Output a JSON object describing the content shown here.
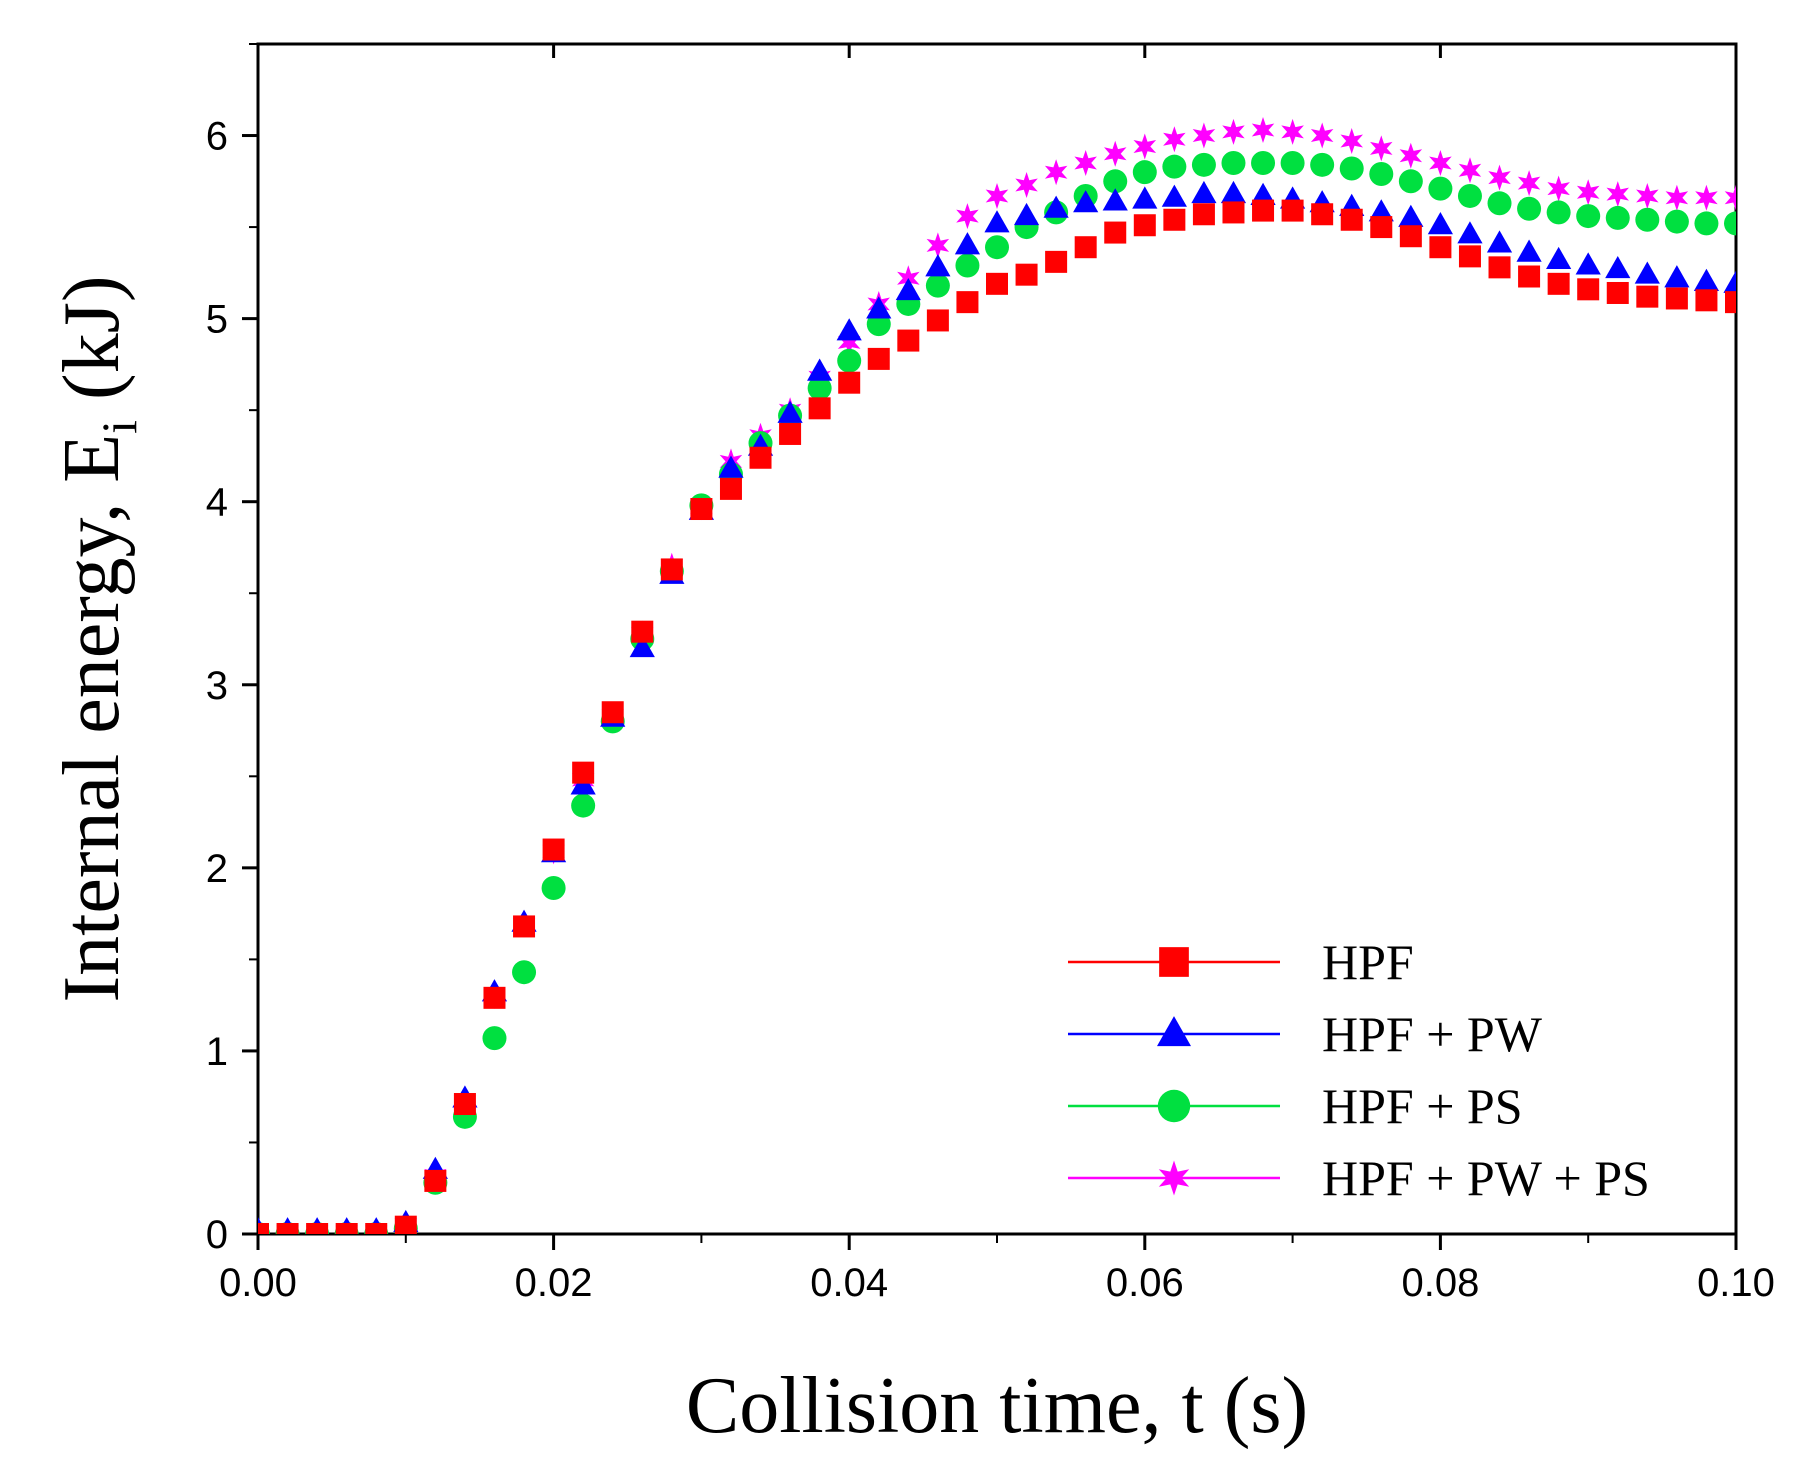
{
  "chart_data": {
    "type": "scatter",
    "title": "",
    "xlabel": "Collision time, t (s)",
    "ylabel_main": "Internal energy, E",
    "ylabel_sub": "i",
    "ylabel_unit": " (kJ)",
    "xlim": [
      0,
      0.1
    ],
    "ylim": [
      0,
      6.5
    ],
    "xticks": [
      0,
      0.02,
      0.04,
      0.06,
      0.08,
      0.1
    ],
    "xtick_labels": [
      "0.00",
      "0.02",
      "0.04",
      "0.06",
      "0.08",
      "0.10"
    ],
    "yticks": [
      0,
      1,
      2,
      3,
      4,
      5,
      6
    ],
    "ytick_labels": [
      "0",
      "1",
      "2",
      "3",
      "4",
      "5",
      "6"
    ],
    "legend_position": "bottom-right",
    "x": [
      0,
      0.002,
      0.004,
      0.006,
      0.008,
      0.01,
      0.012,
      0.014,
      0.016,
      0.018,
      0.02,
      0.022,
      0.024,
      0.026,
      0.028,
      0.03,
      0.032,
      0.034,
      0.036,
      0.038,
      0.04,
      0.042,
      0.044,
      0.046,
      0.048,
      0.05,
      0.052,
      0.054,
      0.056,
      0.058,
      0.06,
      0.062,
      0.064,
      0.066,
      0.068,
      0.07,
      0.072,
      0.074,
      0.076,
      0.078,
      0.08,
      0.082,
      0.084,
      0.086,
      0.088,
      0.09,
      0.092,
      0.094,
      0.096,
      0.098,
      0.1
    ],
    "series": [
      {
        "name": "HPF",
        "marker": "square",
        "color": "#ff0000",
        "values": [
          0,
          0,
          0,
          0,
          0,
          0.04,
          0.29,
          0.71,
          1.29,
          1.68,
          2.1,
          2.52,
          2.85,
          3.29,
          3.63,
          3.96,
          4.07,
          4.24,
          4.37,
          4.51,
          4.65,
          4.78,
          4.88,
          4.99,
          5.09,
          5.19,
          5.24,
          5.31,
          5.39,
          5.47,
          5.51,
          5.54,
          5.57,
          5.58,
          5.59,
          5.59,
          5.57,
          5.54,
          5.5,
          5.45,
          5.39,
          5.34,
          5.28,
          5.23,
          5.19,
          5.16,
          5.14,
          5.12,
          5.11,
          5.1,
          5.09
        ]
      },
      {
        "name": "HPF + PW",
        "marker": "triangle",
        "color": "#0000ff",
        "values": [
          0.02,
          0.02,
          0.02,
          0.02,
          0.02,
          0.06,
          0.35,
          0.74,
          1.32,
          1.7,
          2.08,
          2.45,
          2.82,
          3.2,
          3.6,
          3.95,
          4.18,
          4.3,
          4.48,
          4.71,
          4.93,
          5.05,
          5.15,
          5.28,
          5.4,
          5.52,
          5.56,
          5.6,
          5.63,
          5.64,
          5.65,
          5.66,
          5.68,
          5.68,
          5.67,
          5.65,
          5.63,
          5.61,
          5.58,
          5.55,
          5.51,
          5.46,
          5.41,
          5.36,
          5.32,
          5.29,
          5.27,
          5.24,
          5.22,
          5.2,
          5.19
        ]
      },
      {
        "name": "HPF + PS",
        "marker": "circle",
        "color": "#00e040",
        "values": [
          0,
          0,
          0,
          0,
          0,
          0.03,
          0.28,
          0.64,
          1.07,
          1.43,
          1.89,
          2.34,
          2.8,
          3.25,
          3.62,
          3.98,
          4.15,
          4.32,
          4.47,
          4.62,
          4.77,
          4.97,
          5.08,
          5.18,
          5.29,
          5.39,
          5.5,
          5.58,
          5.67,
          5.75,
          5.8,
          5.83,
          5.84,
          5.85,
          5.85,
          5.85,
          5.84,
          5.82,
          5.79,
          5.75,
          5.71,
          5.67,
          5.63,
          5.6,
          5.58,
          5.56,
          5.55,
          5.54,
          5.53,
          5.52,
          5.52
        ]
      },
      {
        "name": "HPF + PW + PS",
        "marker": "star",
        "color": "#ff00ff",
        "values": [
          0.01,
          0.01,
          0.01,
          0.01,
          0.01,
          0.05,
          0.32,
          0.72,
          1.3,
          1.69,
          2.09,
          2.48,
          2.83,
          3.28,
          3.65,
          3.97,
          4.22,
          4.36,
          4.5,
          4.68,
          4.87,
          5.08,
          5.22,
          5.4,
          5.56,
          5.67,
          5.73,
          5.8,
          5.85,
          5.9,
          5.94,
          5.98,
          6.0,
          6.02,
          6.03,
          6.02,
          6.0,
          5.97,
          5.93,
          5.89,
          5.85,
          5.81,
          5.77,
          5.74,
          5.71,
          5.69,
          5.68,
          5.67,
          5.66,
          5.66,
          5.66
        ]
      }
    ]
  }
}
